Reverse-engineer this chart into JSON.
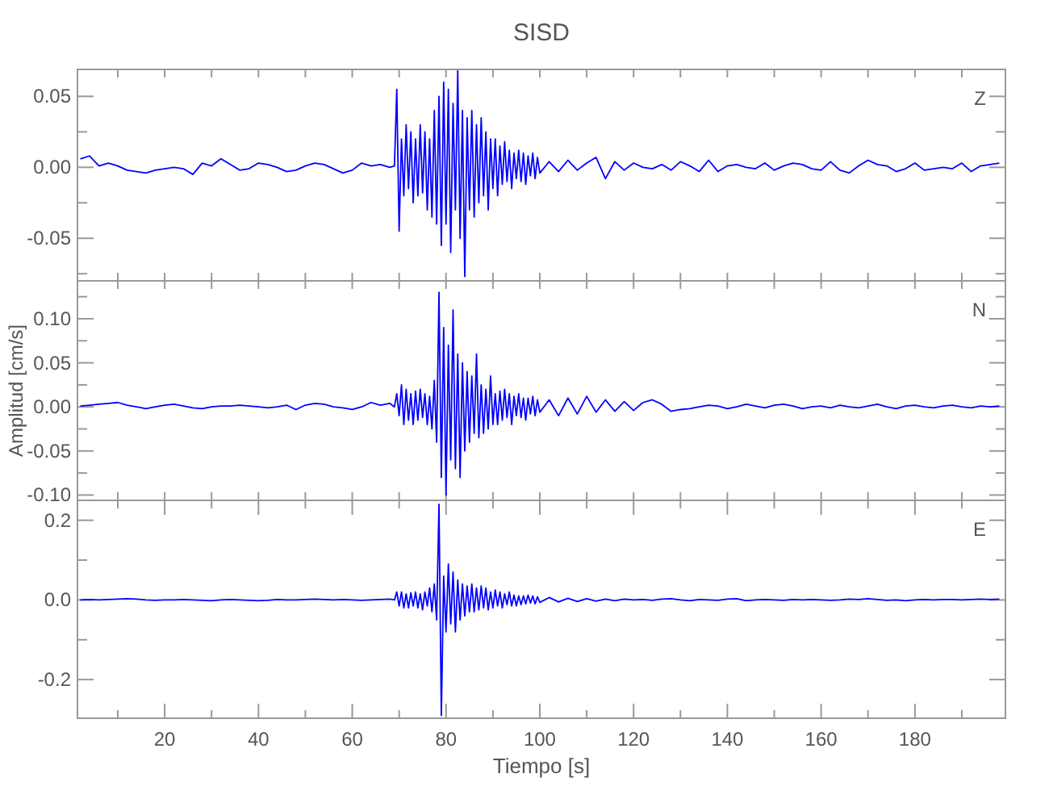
{
  "chart_data": [
    {
      "type": "line",
      "title": "SISD",
      "annotations": [
        "Z"
      ],
      "tick_labels": "y",
      "x": [
        2,
        4,
        6,
        8,
        10,
        12,
        14,
        16,
        18,
        20,
        22,
        24,
        26,
        28,
        30,
        32,
        34,
        36,
        38,
        40,
        42,
        44,
        46,
        48,
        50,
        52,
        54,
        56,
        58,
        60,
        62,
        64,
        66,
        68,
        69,
        69.5,
        70,
        70.5,
        71,
        71.5,
        72,
        72.5,
        73,
        73.5,
        74,
        74.5,
        75,
        75.5,
        76,
        76.5,
        77,
        77.5,
        78,
        78.5,
        79,
        79.5,
        80,
        80.5,
        81,
        81.5,
        82,
        82.5,
        83,
        83.5,
        84,
        84.5,
        85,
        85.5,
        86,
        86.5,
        87,
        87.5,
        88,
        88.5,
        89,
        89.5,
        90,
        90.5,
        91,
        91.5,
        92,
        92.5,
        93,
        93.5,
        94,
        94.5,
        95,
        95.5,
        96,
        96.5,
        97,
        97.5,
        98,
        98.5,
        99,
        99.5,
        100,
        102,
        104,
        106,
        108,
        110,
        112,
        114,
        116,
        118,
        120,
        122,
        124,
        126,
        128,
        130,
        132,
        134,
        136,
        138,
        140,
        142,
        144,
        146,
        148,
        150,
        152,
        154,
        156,
        158,
        160,
        162,
        164,
        166,
        168,
        170,
        172,
        174,
        176,
        178,
        180,
        182,
        184,
        186,
        188,
        190,
        192,
        194,
        196,
        198
      ],
      "series": [
        {
          "color": "#0000ff",
          "values": [
            0.006,
            0.008,
            0.001,
            0.003,
            0.001,
            -0.002,
            -0.003,
            -0.004,
            -0.002,
            -0.001,
            0,
            -0.001,
            -0.005,
            0.003,
            0.001,
            0.006,
            0.002,
            -0.002,
            -0.001,
            0.003,
            0.002,
            0,
            -0.003,
            -0.002,
            0.001,
            0.003,
            0.002,
            -0.001,
            -0.004,
            -0.002,
            0.003,
            0.001,
            0.002,
            0,
            0.001,
            0.055,
            -0.045,
            0.02,
            -0.02,
            0.03,
            -0.015,
            0.025,
            -0.025,
            0.02,
            -0.02,
            0.03,
            -0.018,
            0.025,
            -0.03,
            0.02,
            -0.035,
            0.04,
            -0.04,
            0.05,
            -0.055,
            0.06,
            -0.04,
            0.055,
            -0.06,
            0.045,
            -0.03,
            0.068,
            -0.05,
            0.04,
            -0.077,
            0.035,
            -0.03,
            0.04,
            -0.035,
            0.03,
            -0.025,
            0.035,
            -0.02,
            0.025,
            -0.03,
            0.02,
            -0.015,
            0.02,
            -0.02,
            0.015,
            -0.012,
            0.018,
            -0.01,
            0.012,
            -0.015,
            0.01,
            -0.008,
            0.012,
            -0.01,
            0.01,
            -0.012,
            0.008,
            -0.006,
            0.01,
            -0.008,
            0.007,
            -0.004,
            0.004,
            -0.003,
            0.005,
            -0.002,
            0.003,
            0.007,
            -0.008,
            0.004,
            -0.002,
            0.003,
            0,
            -0.001,
            0.002,
            -0.002,
            0.004,
            0.001,
            -0.003,
            0.005,
            -0.003,
            0.001,
            0.002,
            0,
            -0.001,
            0.003,
            -0.002,
            0.001,
            0.003,
            0.002,
            -0.001,
            -0.002,
            0.004,
            -0.002,
            -0.004,
            0.001,
            0.005,
            0.002,
            0.001,
            -0.003,
            -0.001,
            0.003,
            -0.002,
            -0.001,
            0,
            -0.001,
            0.003,
            -0.003,
            0.001,
            0.002,
            0.003
          ]
        }
      ],
      "xlim": [
        1.4,
        199.3
      ],
      "xticks": [
        {
          "value": 10,
          "label": null
        },
        {
          "value": 20,
          "label": null
        },
        {
          "value": 30,
          "label": null
        },
        {
          "value": 40,
          "label": null
        },
        {
          "value": 50,
          "label": null
        },
        {
          "value": 60,
          "label": null
        },
        {
          "value": 70,
          "label": null
        },
        {
          "value": 80,
          "label": null
        },
        {
          "value": 90,
          "label": null
        },
        {
          "value": 100,
          "label": null
        },
        {
          "value": 110,
          "label": null
        },
        {
          "value": 120,
          "label": null
        },
        {
          "value": 130,
          "label": null
        },
        {
          "value": 140,
          "label": null
        },
        {
          "value": 150,
          "label": null
        },
        {
          "value": 160,
          "label": null
        },
        {
          "value": 170,
          "label": null
        },
        {
          "value": 180,
          "label": null
        },
        {
          "value": 190,
          "label": null
        }
      ],
      "ylim": [
        -0.08,
        0.069
      ],
      "yticks": [
        {
          "value": -0.075,
          "label": null
        },
        {
          "value": -0.05,
          "label": "-0.05"
        },
        {
          "value": -0.025,
          "label": null
        },
        {
          "value": 0,
          "label": "0.00"
        },
        {
          "value": 0.025,
          "label": null
        },
        {
          "value": 0.05,
          "label": "0.05"
        }
      ]
    },
    {
      "type": "line",
      "ylabel": "Amplitud [cm/s]",
      "annotations": [
        "N"
      ],
      "tick_labels": "y",
      "x": [
        2,
        4,
        6,
        8,
        10,
        12,
        14,
        16,
        18,
        20,
        22,
        24,
        26,
        28,
        30,
        32,
        34,
        36,
        38,
        40,
        42,
        44,
        46,
        48,
        50,
        52,
        54,
        56,
        58,
        60,
        62,
        64,
        66,
        68,
        69,
        69.5,
        70,
        70.5,
        71,
        71.5,
        72,
        72.5,
        73,
        73.5,
        74,
        74.5,
        75,
        75.5,
        76,
        76.5,
        77,
        77.5,
        78,
        78.5,
        79,
        79.5,
        80,
        80.5,
        81,
        81.5,
        82,
        82.5,
        83,
        83.5,
        84,
        84.5,
        85,
        85.5,
        86,
        86.5,
        87,
        87.5,
        88,
        88.5,
        89,
        89.5,
        90,
        90.5,
        91,
        91.5,
        92,
        92.5,
        93,
        93.5,
        94,
        94.5,
        95,
        95.5,
        96,
        96.5,
        97,
        97.5,
        98,
        98.5,
        99,
        99.5,
        100,
        102,
        104,
        106,
        108,
        110,
        112,
        114,
        116,
        118,
        120,
        122,
        124,
        126,
        128,
        130,
        132,
        134,
        136,
        138,
        140,
        142,
        144,
        146,
        148,
        150,
        152,
        154,
        156,
        158,
        160,
        162,
        164,
        166,
        168,
        170,
        172,
        174,
        176,
        178,
        180,
        182,
        184,
        186,
        188,
        190,
        192,
        194,
        196,
        198
      ],
      "series": [
        {
          "color": "#0000ff",
          "values": [
            0.001,
            0.002,
            0.003,
            0.004,
            0.005,
            0.002,
            0,
            -0.002,
            0,
            0.002,
            0.003,
            0.001,
            -0.001,
            -0.002,
            0,
            0.001,
            0.001,
            0.002,
            0.001,
            0,
            -0.001,
            0,
            0.002,
            -0.003,
            0.002,
            0.004,
            0.003,
            0,
            -0.001,
            -0.003,
            0,
            0.005,
            0.002,
            0.004,
            0,
            0.015,
            -0.01,
            0.025,
            -0.02,
            0.02,
            -0.015,
            0.015,
            -0.02,
            0.018,
            -0.015,
            0.02,
            -0.012,
            0.015,
            -0.02,
            0.012,
            -0.025,
            0.03,
            -0.04,
            0.13,
            -0.08,
            0.09,
            -0.1,
            0.07,
            -0.06,
            0.11,
            -0.07,
            0.06,
            -0.08,
            0.05,
            -0.05,
            0.04,
            -0.04,
            0.035,
            -0.03,
            0.06,
            -0.035,
            0.025,
            -0.03,
            0.02,
            -0.025,
            0.035,
            -0.02,
            0.015,
            -0.02,
            0.018,
            -0.015,
            0.02,
            -0.012,
            0.015,
            -0.02,
            0.012,
            -0.01,
            0.015,
            -0.012,
            0.01,
            -0.015,
            0.01,
            -0.008,
            0.012,
            -0.01,
            0.008,
            -0.006,
            0.008,
            -0.01,
            0.01,
            -0.008,
            0.012,
            -0.006,
            0.008,
            -0.005,
            0.006,
            -0.004,
            0.005,
            0.008,
            0.003,
            -0.005,
            -0.003,
            -0.002,
            0,
            0.002,
            0.001,
            -0.002,
            0,
            0.003,
            0.001,
            -0.001,
            0.002,
            0.003,
            0.001,
            -0.002,
            0,
            0.001,
            -0.001,
            0.002,
            0,
            -0.001,
            0.001,
            0.003,
            0,
            -0.002,
            0.001,
            0.002,
            0,
            -0.001,
            0.001,
            0.002,
            0,
            -0.001,
            0.001,
            0,
            0.001
          ]
        }
      ],
      "xlim": [
        1.4,
        199.3
      ],
      "xticks": [
        {
          "value": 10,
          "label": null
        },
        {
          "value": 20,
          "label": null
        },
        {
          "value": 30,
          "label": null
        },
        {
          "value": 40,
          "label": null
        },
        {
          "value": 50,
          "label": null
        },
        {
          "value": 60,
          "label": null
        },
        {
          "value": 70,
          "label": null
        },
        {
          "value": 80,
          "label": null
        },
        {
          "value": 90,
          "label": null
        },
        {
          "value": 100,
          "label": null
        },
        {
          "value": 110,
          "label": null
        },
        {
          "value": 120,
          "label": null
        },
        {
          "value": 130,
          "label": null
        },
        {
          "value": 140,
          "label": null
        },
        {
          "value": 150,
          "label": null
        },
        {
          "value": 160,
          "label": null
        },
        {
          "value": 170,
          "label": null
        },
        {
          "value": 180,
          "label": null
        },
        {
          "value": 190,
          "label": null
        }
      ],
      "ylim": [
        -0.106,
        0.143
      ],
      "yticks": [
        {
          "value": -0.1,
          "label": "-0.10"
        },
        {
          "value": -0.075,
          "label": null
        },
        {
          "value": -0.05,
          "label": "-0.05"
        },
        {
          "value": -0.025,
          "label": null
        },
        {
          "value": 0,
          "label": "0.00"
        },
        {
          "value": 0.025,
          "label": null
        },
        {
          "value": 0.05,
          "label": "0.05"
        },
        {
          "value": 0.075,
          "label": null
        },
        {
          "value": 0.1,
          "label": "0.10"
        },
        {
          "value": 0.125,
          "label": null
        }
      ]
    },
    {
      "type": "line",
      "xlabel": "Tiempo [s]",
      "annotations": [
        "E"
      ],
      "x": [
        2,
        4,
        6,
        8,
        10,
        12,
        14,
        16,
        18,
        20,
        22,
        24,
        26,
        28,
        30,
        32,
        34,
        36,
        38,
        40,
        42,
        44,
        46,
        48,
        50,
        52,
        54,
        56,
        58,
        60,
        62,
        64,
        66,
        68,
        69,
        69.5,
        70,
        70.5,
        71,
        71.5,
        72,
        72.5,
        73,
        73.5,
        74,
        74.5,
        75,
        75.5,
        76,
        76.5,
        77,
        77.5,
        78,
        78.5,
        79,
        79.5,
        80,
        80.5,
        81,
        81.5,
        82,
        82.5,
        83,
        83.5,
        84,
        84.5,
        85,
        85.5,
        86,
        86.5,
        87,
        87.5,
        88,
        88.5,
        89,
        89.5,
        90,
        90.5,
        91,
        91.5,
        92,
        92.5,
        93,
        93.5,
        94,
        94.5,
        95,
        95.5,
        96,
        96.5,
        97,
        97.5,
        98,
        98.5,
        99,
        99.5,
        100,
        102,
        104,
        106,
        108,
        110,
        112,
        114,
        116,
        118,
        120,
        122,
        124,
        126,
        128,
        130,
        132,
        134,
        136,
        138,
        140,
        142,
        144,
        146,
        148,
        150,
        152,
        154,
        156,
        158,
        160,
        162,
        164,
        166,
        168,
        170,
        172,
        174,
        176,
        178,
        180,
        182,
        184,
        186,
        188,
        190,
        192,
        194,
        196,
        198
      ],
      "series": [
        {
          "color": "#0000ff",
          "values": [
            0,
            0.001,
            0,
            0.001,
            0.002,
            0.003,
            0.002,
            0,
            -0.001,
            0,
            0,
            0.001,
            0,
            -0.001,
            -0.002,
            0,
            0.001,
            0,
            -0.001,
            -0.002,
            -0.001,
            0.001,
            0,
            0,
            0.001,
            0.002,
            0.001,
            0,
            0.001,
            0,
            -0.001,
            0,
            0.001,
            0.002,
            0,
            0.02,
            -0.015,
            0.02,
            -0.02,
            0.015,
            -0.02,
            0.018,
            -0.015,
            0.02,
            -0.02,
            0.015,
            -0.025,
            0.02,
            -0.015,
            0.03,
            -0.03,
            0.04,
            -0.05,
            0.24,
            -0.29,
            0.06,
            -0.08,
            0.09,
            -0.06,
            0.07,
            -0.08,
            0.05,
            -0.05,
            0.04,
            -0.04,
            0.035,
            -0.03,
            0.04,
            -0.03,
            0.03,
            -0.025,
            0.035,
            -0.02,
            0.03,
            -0.025,
            0.02,
            -0.02,
            0.025,
            -0.015,
            0.02,
            -0.02,
            0.015,
            -0.012,
            0.02,
            -0.015,
            0.012,
            -0.015,
            0.01,
            -0.012,
            0.01,
            -0.01,
            0.012,
            -0.008,
            0.01,
            -0.01,
            0.008,
            -0.006,
            0.006,
            -0.005,
            0.004,
            -0.004,
            0.003,
            -0.003,
            0.002,
            -0.002,
            0.002,
            0,
            0.001,
            -0.001,
            0.002,
            0.003,
            0,
            -0.002,
            0.001,
            0,
            -0.001,
            0.002,
            0.003,
            -0.002,
            0,
            0.001,
            0,
            -0.001,
            0.001,
            0,
            0.001,
            0,
            -0.001,
            0,
            0.002,
            0.001,
            0.003,
            0.001,
            -0.001,
            0,
            -0.002,
            0,
            0.001,
            0,
            0.001,
            0.001,
            0,
            0.001,
            0.002,
            0.001,
            0.002
          ]
        }
      ],
      "xlim": [
        1.4,
        199.3
      ],
      "xticks": [
        {
          "value": 10,
          "label": null
        },
        20,
        {
          "value": 30,
          "label": null
        },
        40,
        {
          "value": 50,
          "label": null
        },
        60,
        {
          "value": 70,
          "label": null
        },
        80,
        {
          "value": 90,
          "label": null
        },
        100,
        {
          "value": 110,
          "label": null
        },
        120,
        {
          "value": 130,
          "label": null
        },
        140,
        {
          "value": 150,
          "label": null
        },
        160,
        {
          "value": 170,
          "label": null
        },
        180,
        {
          "value": 190,
          "label": null
        }
      ],
      "ylim": [
        -0.297,
        0.25
      ],
      "yticks": [
        {
          "value": -0.2,
          "label": "-0.2"
        },
        {
          "value": -0.1,
          "label": null
        },
        {
          "value": 0,
          "label": "0.0"
        },
        {
          "value": 0.1,
          "label": null
        },
        {
          "value": 0.2,
          "label": "0.2"
        }
      ]
    }
  ]
}
